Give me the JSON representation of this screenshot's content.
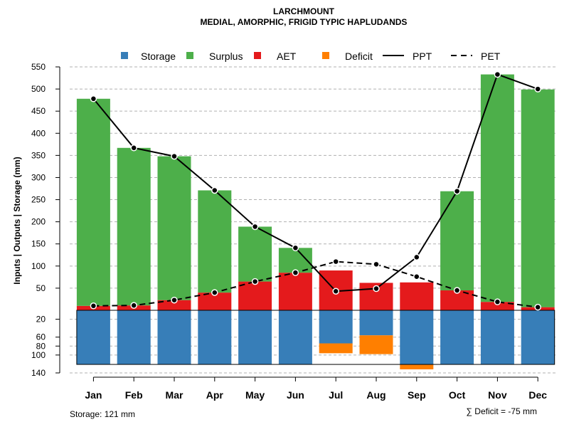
{
  "chart_data": {
    "type": "bar",
    "title": "LARCHMOUNT",
    "subtitle": "MEDIAL, AMORPHIC, FRIGID TYPIC HAPLUDANDS",
    "ylabel": "Inputs | Outputs | Storage    (mm)",
    "categories": [
      "Jan",
      "Feb",
      "Mar",
      "Apr",
      "May",
      "Jun",
      "Jul",
      "Aug",
      "Sep",
      "Oct",
      "Nov",
      "Dec"
    ],
    "y_upper_ticks": [
      50,
      100,
      150,
      200,
      250,
      300,
      350,
      400,
      450,
      500,
      550
    ],
    "y_lower_ticks": [
      20,
      60,
      80,
      100,
      140
    ],
    "ylim_upper": [
      0,
      550
    ],
    "ylim_lower": [
      0,
      140
    ],
    "series": [
      {
        "name": "Storage",
        "color": "#377EB8",
        "values": [
          121,
          121,
          121,
          121,
          121,
          121,
          74,
          56,
          121,
          121,
          121,
          121
        ]
      },
      {
        "name": "Surplus",
        "color": "#4DAF4A",
        "values": [
          468,
          356,
          325,
          231,
          124,
          56,
          0,
          0,
          0,
          224,
          514,
          492
        ]
      },
      {
        "name": "AET",
        "color": "#E41A1C",
        "values": [
          10,
          11,
          23,
          40,
          65,
          85,
          90,
          62,
          63,
          45,
          19,
          7
        ]
      },
      {
        "name": "Deficit",
        "color": "#FF7F00",
        "values": [
          0,
          0,
          0,
          0,
          0,
          0,
          -22,
          -42,
          -11,
          0,
          0,
          0
        ]
      },
      {
        "name": "PPT",
        "color": "#000000",
        "values": [
          478,
          367,
          348,
          271,
          189,
          141,
          43,
          49,
          120,
          269,
          533,
          500
        ]
      },
      {
        "name": "PET",
        "color": "#000000",
        "values": [
          10,
          11,
          23,
          40,
          65,
          85,
          110,
          104,
          76,
          45,
          19,
          7
        ]
      }
    ],
    "legend": {
      "position": "top",
      "items": [
        {
          "label": "Storage",
          "kind": "box",
          "color": "#377EB8"
        },
        {
          "label": "Surplus",
          "kind": "box",
          "color": "#4DAF4A"
        },
        {
          "label": "AET",
          "kind": "box",
          "color": "#E41A1C"
        },
        {
          "label": "Deficit",
          "kind": "box",
          "color": "#FF7F00"
        },
        {
          "label": "PPT",
          "kind": "solid-line",
          "color": "#000000"
        },
        {
          "label": "PET",
          "kind": "dashed-line",
          "color": "#000000"
        }
      ]
    },
    "footnote_storage": "Storage: 121 mm",
    "footnote_deficit": "∑ Deficit = -75 mm"
  }
}
